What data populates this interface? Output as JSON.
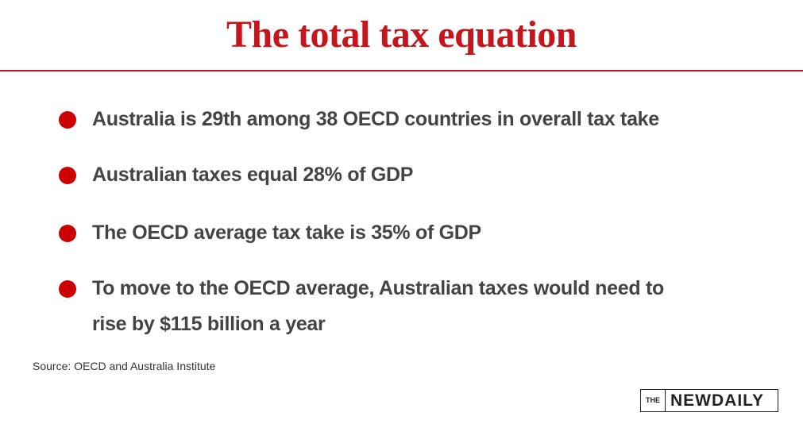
{
  "header": {
    "title": "The total tax equation"
  },
  "bullets": [
    "Australia is 29th among 38 OECD countries in overall tax take",
    "Australian taxes equal 28% of GDP",
    "The OECD average tax take is 35% of GDP",
    "To move to the OECD average, Australian taxes would need to rise by $115 billion a year"
  ],
  "source": "Source: OECD and Australia Institute",
  "logo": {
    "the": "THE",
    "name": "NEWDAILY"
  }
}
